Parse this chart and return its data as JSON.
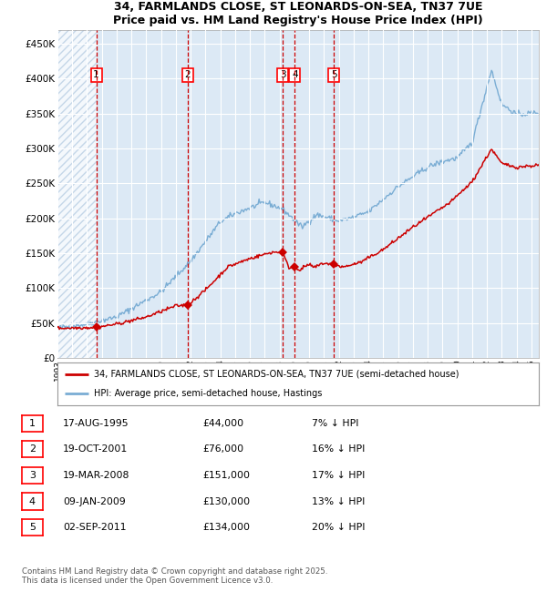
{
  "title_line1": "34, FARMLANDS CLOSE, ST LEONARDS-ON-SEA, TN37 7UE",
  "title_line2": "Price paid vs. HM Land Registry's House Price Index (HPI)",
  "xlim_start": 1993.0,
  "xlim_end": 2025.5,
  "ylim_min": 0,
  "ylim_max": 470000,
  "yticks": [
    0,
    50000,
    100000,
    150000,
    200000,
    250000,
    300000,
    350000,
    400000,
    450000
  ],
  "ytick_labels": [
    "£0",
    "£50K",
    "£100K",
    "£150K",
    "£200K",
    "£250K",
    "£300K",
    "£350K",
    "£400K",
    "£450K"
  ],
  "xtick_years": [
    1993,
    1994,
    1995,
    1996,
    1997,
    1998,
    1999,
    2000,
    2001,
    2002,
    2003,
    2004,
    2005,
    2006,
    2007,
    2008,
    2009,
    2010,
    2011,
    2012,
    2013,
    2014,
    2015,
    2016,
    2017,
    2018,
    2019,
    2020,
    2021,
    2022,
    2023,
    2024,
    2025
  ],
  "plot_bg_color": "#dce9f5",
  "grid_color": "#ffffff",
  "red_line_color": "#cc0000",
  "blue_line_color": "#7aadd4",
  "dashed_line_color": "#cc0000",
  "sale_points": [
    {
      "year": 1995.622,
      "price": 44000,
      "label": "1"
    },
    {
      "year": 2001.8,
      "price": 76000,
      "label": "2"
    },
    {
      "year": 2008.217,
      "price": 151000,
      "label": "3"
    },
    {
      "year": 2009.025,
      "price": 130000,
      "label": "4"
    },
    {
      "year": 2011.671,
      "price": 134000,
      "label": "5"
    }
  ],
  "legend_red_label": "34, FARMLANDS CLOSE, ST LEONARDS-ON-SEA, TN37 7UE (semi-detached house)",
  "legend_blue_label": "HPI: Average price, semi-detached house, Hastings",
  "table_rows": [
    {
      "num": "1",
      "date": "17-AUG-1995",
      "price": "£44,000",
      "hpi": "7% ↓ HPI"
    },
    {
      "num": "2",
      "date": "19-OCT-2001",
      "price": "£76,000",
      "hpi": "16% ↓ HPI"
    },
    {
      "num": "3",
      "date": "19-MAR-2008",
      "price": "£151,000",
      "hpi": "17% ↓ HPI"
    },
    {
      "num": "4",
      "date": "09-JAN-2009",
      "price": "£130,000",
      "hpi": "13% ↓ HPI"
    },
    {
      "num": "5",
      "date": "02-SEP-2011",
      "price": "£134,000",
      "hpi": "20% ↓ HPI"
    }
  ],
  "footnote": "Contains HM Land Registry data © Crown copyright and database right 2025.\nThis data is licensed under the Open Government Licence v3.0."
}
